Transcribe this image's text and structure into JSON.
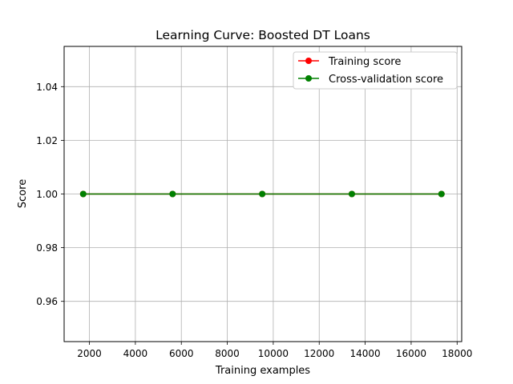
{
  "chart_data": {
    "type": "line",
    "title": "Learning Curve: Boosted DT Loans",
    "xlabel": "Training examples",
    "ylabel": "Score",
    "xlim": [
      900,
      18200
    ],
    "ylim": [
      0.945,
      1.055
    ],
    "xticks": [
      2000,
      4000,
      6000,
      8000,
      10000,
      12000,
      14000,
      16000,
      18000
    ],
    "yticks": [
      0.96,
      0.98,
      1.0,
      1.02,
      1.04
    ],
    "ytick_labels": [
      "0.96",
      "0.98",
      "1.00",
      "1.02",
      "1.04"
    ],
    "grid": true,
    "legend_position": "top-right",
    "x": [
      1730,
      5620,
      9520,
      13420,
      17320
    ],
    "series": [
      {
        "name": "Training score",
        "color": "#ff0000",
        "values": [
          1.0,
          1.0,
          1.0,
          1.0,
          1.0
        ]
      },
      {
        "name": "Cross-validation score",
        "color": "#008000",
        "values": [
          1.0,
          1.0,
          1.0,
          1.0,
          1.0
        ]
      }
    ]
  }
}
